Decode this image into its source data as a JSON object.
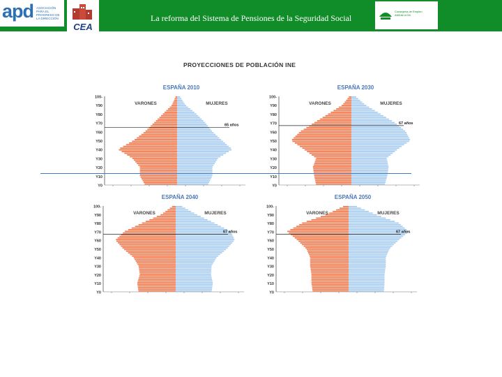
{
  "header": {
    "title": "La reforma del Sistema de Pensiones de la Seguridad Social",
    "logo_apd": "apd",
    "logo_apd_tagline": "ASOCIACIÓN PARA EL PROGRESO DE LA DIRECCIÓN",
    "logo_cea": "CEA",
    "logo_junta_text": "Consejería de Empleo ANDALUCÍA"
  },
  "figure_title": "PROYECCIONES DE POBLACIÓN INE",
  "colors": {
    "header": "#108d28",
    "varones": "#f47a4e",
    "mujeres": "#a9cdf0"
  },
  "chart_data": [
    {
      "type": "bar",
      "title": "ESPAÑA 2010",
      "left_label": "VARONES",
      "right_label": "MUJERES",
      "annotation": "65 años",
      "y_ticks": [
        "100-",
        "Y90",
        "Y80",
        "Y70",
        "Y60",
        "Y50",
        "Y40",
        "Y30",
        "Y20",
        "Y10",
        "Y0"
      ],
      "varones_profile": [
        0.02,
        0.08,
        0.22,
        0.36,
        0.5,
        0.68,
        0.92,
        0.7,
        0.58,
        0.58,
        0.5
      ],
      "mujeres_profile": [
        0.04,
        0.13,
        0.3,
        0.44,
        0.55,
        0.7,
        0.86,
        0.64,
        0.55,
        0.55,
        0.48
      ]
    },
    {
      "type": "bar",
      "title": "ESPAÑA 2030",
      "left_label": "VARONES",
      "right_label": "MUJERES",
      "annotation": "67 años",
      "y_ticks": [
        "100-",
        "Y90",
        "Y80",
        "Y70",
        "Y60",
        "Y50",
        "Y40",
        "Y30",
        "Y20",
        "Y10",
        "Y0"
      ],
      "varones_profile": [
        0.03,
        0.14,
        0.36,
        0.58,
        0.8,
        0.94,
        0.74,
        0.55,
        0.6,
        0.58,
        0.55
      ],
      "mujeres_profile": [
        0.06,
        0.22,
        0.45,
        0.68,
        0.85,
        0.92,
        0.72,
        0.55,
        0.58,
        0.56,
        0.52
      ]
    },
    {
      "type": "bar",
      "title": "ESPAÑA 2040",
      "left_label": "VARONES",
      "right_label": "MUJERES",
      "annotation": "67 años",
      "y_ticks": [
        "100-",
        "Y90",
        "Y80",
        "Y70",
        "Y60",
        "Y50",
        "Y40",
        "Y30",
        "Y20",
        "Y10",
        "Y0"
      ],
      "varones_profile": [
        0.04,
        0.22,
        0.52,
        0.8,
        0.94,
        0.82,
        0.66,
        0.58,
        0.56,
        0.6,
        0.58
      ],
      "mujeres_profile": [
        0.08,
        0.32,
        0.6,
        0.86,
        0.92,
        0.8,
        0.64,
        0.56,
        0.55,
        0.58,
        0.56
      ]
    },
    {
      "type": "bar",
      "title": "ESPAÑA 2050",
      "left_label": "VARONES",
      "right_label": "MUJERES",
      "annotation": "67 años",
      "y_ticks": [
        "100-",
        "Y90",
        "Y80",
        "Y70",
        "Y60",
        "Y50",
        "Y40",
        "Y30",
        "Y20",
        "Y10",
        "Y0"
      ],
      "varones_profile": [
        0.06,
        0.34,
        0.72,
        0.96,
        0.8,
        0.66,
        0.6,
        0.6,
        0.58,
        0.58,
        0.56
      ],
      "mujeres_profile": [
        0.1,
        0.42,
        0.78,
        0.94,
        0.78,
        0.64,
        0.58,
        0.58,
        0.56,
        0.56,
        0.55
      ]
    }
  ]
}
